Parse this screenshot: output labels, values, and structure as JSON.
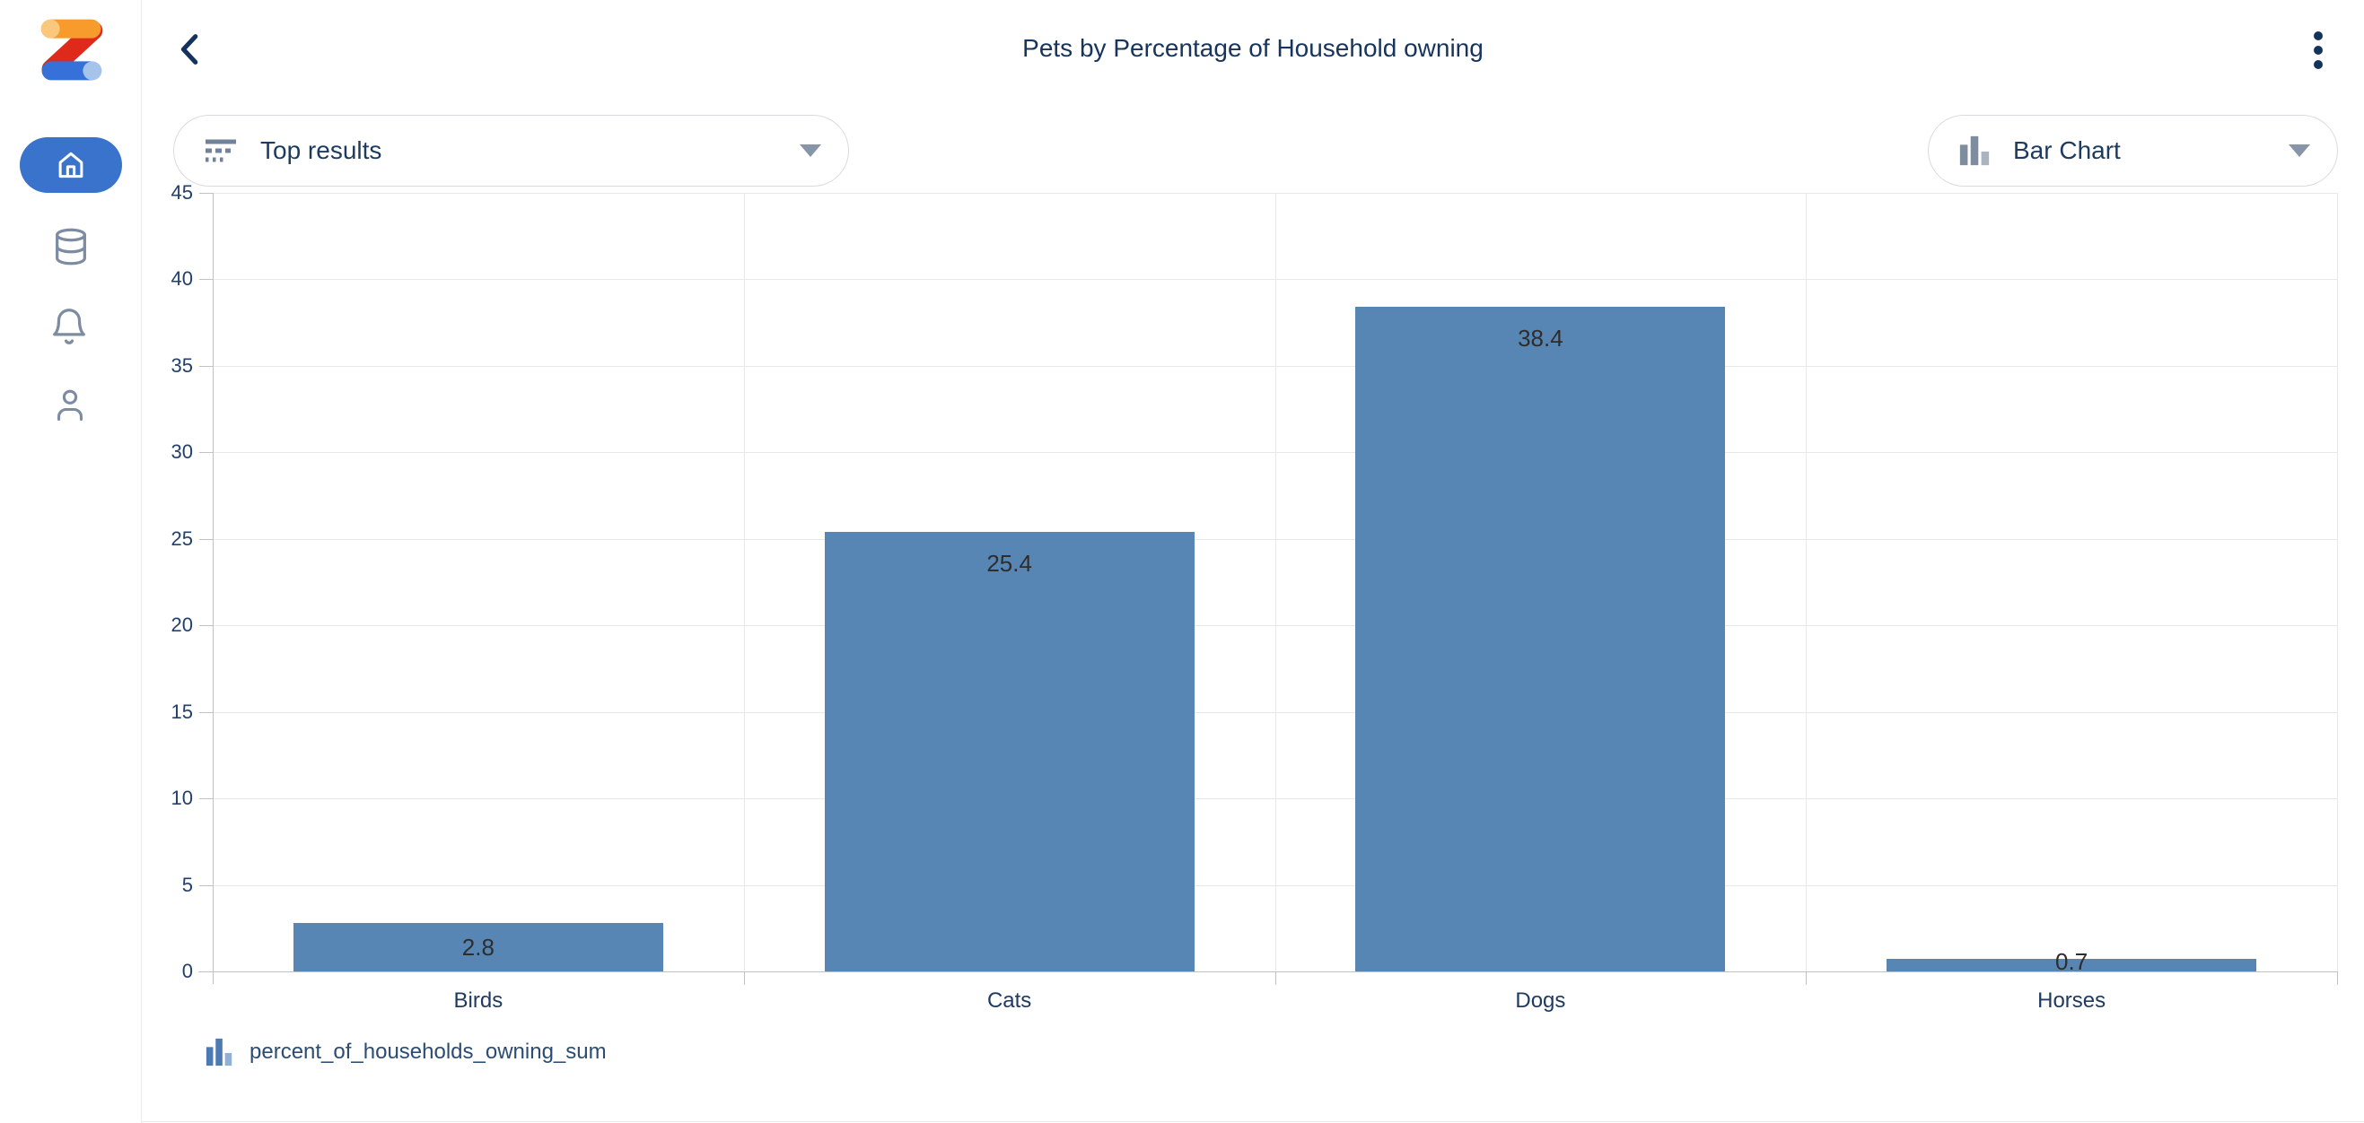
{
  "header": {
    "title": "Pets by Percentage of Household owning",
    "back_icon": "chevron-left-icon",
    "menu_icon": "kebab-menu-icon"
  },
  "sidebar": {
    "logo": "zoho-logo",
    "items": [
      {
        "label": "home",
        "active": true
      },
      {
        "label": "data",
        "active": false
      },
      {
        "label": "notifications",
        "active": false
      },
      {
        "label": "profile",
        "active": false
      }
    ]
  },
  "controls": {
    "top_results": {
      "label": "Top results",
      "icon": "top-results-filter-icon"
    },
    "chart_type": {
      "label": "Bar Chart",
      "icon": "bar-chart-icon"
    }
  },
  "legend": {
    "label": "percent_of_households_owning_sum",
    "icon": "bar-chart-icon"
  },
  "chart_data": {
    "type": "bar",
    "title": "Pets by Percentage of Household owning",
    "categories": [
      "Birds",
      "Cats",
      "Dogs",
      "Horses"
    ],
    "values": [
      2.8,
      25.4,
      38.4,
      0.7
    ],
    "series_name": "percent_of_households_owning_sum",
    "xlabel": "",
    "ylabel": "",
    "ylim": [
      0,
      45
    ],
    "ytick_step": 5,
    "grid": true,
    "legend_position": "bottom-left",
    "bar_color": "#5886b4",
    "value_label_color": "#2d2d2d"
  },
  "colors": {
    "brand_active_blue": "#3a73cb",
    "navy_text": "#16345c",
    "icon_slate": "#7d8ca0",
    "bar_fill": "#5886b4",
    "legend_bar_dark": "#4c7ab2",
    "legend_bar_light": "#8fb0d8"
  }
}
